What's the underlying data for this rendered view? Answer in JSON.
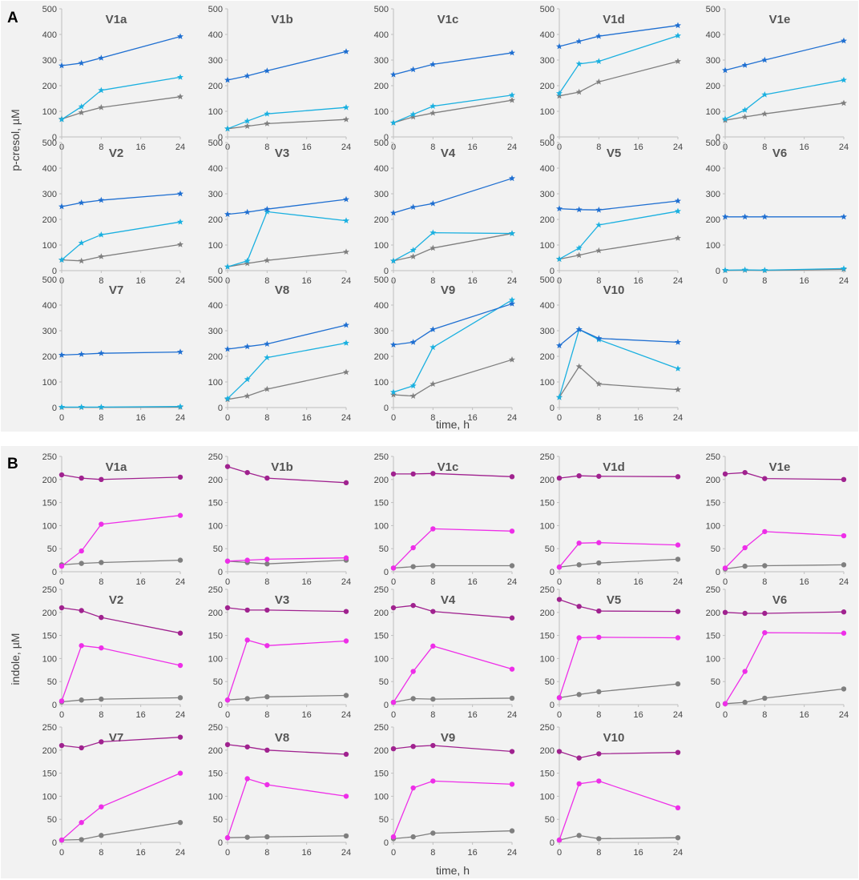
{
  "figure": {
    "colors": {
      "background": "#f2f2f2",
      "pcresol_high": "#1f6fd1",
      "pcresol_mid": "#1ab0e0",
      "pcresol_low": "#7f7f7f",
      "indole_high": "#a0228f",
      "indole_mid": "#ee2ee8",
      "indole_low": "#7f7f7f"
    },
    "marker_icons": {
      "pcresol": "star-icon",
      "indole": "circle-icon"
    }
  },
  "chart_data": [
    {
      "id": "A",
      "type": "line",
      "panel_label": "A",
      "ylabel": "p-cresol, µM",
      "xlabel": "time, h",
      "ylim": [
        0,
        500
      ],
      "yticks": [
        0,
        100,
        200,
        300,
        400,
        500
      ],
      "xlim": [
        0,
        24
      ],
      "xticks": [
        0,
        8,
        16,
        24
      ],
      "x": [
        0,
        4,
        8,
        24
      ],
      "grid": false,
      "marker": "star",
      "subplots": [
        {
          "title": "V1a",
          "series": [
            {
              "color": "#1f6fd1",
              "values": [
                278,
                288,
                308,
                392
              ]
            },
            {
              "color": "#1ab0e0",
              "values": [
                68,
                118,
                182,
                233
              ]
            },
            {
              "color": "#7f7f7f",
              "values": [
                70,
                95,
                115,
                157
              ]
            }
          ]
        },
        {
          "title": "V1b",
          "series": [
            {
              "color": "#1f6fd1",
              "values": [
                222,
                238,
                258,
                333
              ]
            },
            {
              "color": "#1ab0e0",
              "values": [
                32,
                62,
                90,
                115
              ]
            },
            {
              "color": "#7f7f7f",
              "values": [
                32,
                42,
                52,
                68
              ]
            }
          ]
        },
        {
          "title": "V1c",
          "series": [
            {
              "color": "#1f6fd1",
              "values": [
                243,
                263,
                283,
                328
              ]
            },
            {
              "color": "#1ab0e0",
              "values": [
                55,
                88,
                120,
                163
              ]
            },
            {
              "color": "#7f7f7f",
              "values": [
                55,
                78,
                93,
                143
              ]
            }
          ]
        },
        {
          "title": "V1d",
          "series": [
            {
              "color": "#1f6fd1",
              "values": [
                353,
                373,
                393,
                435
              ]
            },
            {
              "color": "#1ab0e0",
              "values": [
                170,
                285,
                295,
                395
              ]
            },
            {
              "color": "#7f7f7f",
              "values": [
                160,
                175,
                215,
                295
              ]
            }
          ]
        },
        {
          "title": "V1e",
          "series": [
            {
              "color": "#1f6fd1",
              "values": [
                260,
                280,
                300,
                375
              ]
            },
            {
              "color": "#1ab0e0",
              "values": [
                70,
                105,
                165,
                222
              ]
            },
            {
              "color": "#7f7f7f",
              "values": [
                65,
                78,
                90,
                132
              ]
            }
          ]
        },
        {
          "title": "V2",
          "series": [
            {
              "color": "#1f6fd1",
              "values": [
                250,
                265,
                275,
                300
              ]
            },
            {
              "color": "#1ab0e0",
              "values": [
                42,
                108,
                140,
                190
              ]
            },
            {
              "color": "#7f7f7f",
              "values": [
                42,
                38,
                55,
                102
              ]
            }
          ]
        },
        {
          "title": "V3",
          "series": [
            {
              "color": "#1f6fd1",
              "values": [
                220,
                228,
                240,
                278
              ]
            },
            {
              "color": "#1ab0e0",
              "values": [
                15,
                38,
                230,
                195
              ]
            },
            {
              "color": "#7f7f7f",
              "values": [
                15,
                28,
                40,
                73
              ]
            }
          ]
        },
        {
          "title": "V4",
          "series": [
            {
              "color": "#1f6fd1",
              "values": [
                225,
                248,
                262,
                360
              ]
            },
            {
              "color": "#1ab0e0",
              "values": [
                38,
                80,
                148,
                145
              ]
            },
            {
              "color": "#7f7f7f",
              "values": [
                38,
                55,
                88,
                145
              ]
            }
          ]
        },
        {
          "title": "V5",
          "series": [
            {
              "color": "#1f6fd1",
              "values": [
                242,
                238,
                237,
                272
              ]
            },
            {
              "color": "#1ab0e0",
              "values": [
                45,
                88,
                178,
                232
              ]
            },
            {
              "color": "#7f7f7f",
              "values": [
                45,
                60,
                78,
                127
              ]
            }
          ]
        },
        {
          "title": "V6",
          "series": [
            {
              "color": "#1f6fd1",
              "values": [
                210,
                210,
                210,
                210
              ]
            },
            {
              "color": "#1ab0e0",
              "values": [
                2,
                3,
                2,
                8
              ]
            },
            {
              "color": "#7f7f7f",
              "values": [
                1,
                2,
                1,
                5
              ]
            }
          ]
        },
        {
          "title": "V7",
          "series": [
            {
              "color": "#1f6fd1",
              "values": [
                205,
                208,
                212,
                217
              ]
            },
            {
              "color": "#1ab0e0",
              "values": [
                2,
                2,
                2,
                4
              ]
            },
            {
              "color": "#7f7f7f",
              "values": [
                1,
                1,
                1,
                2
              ]
            }
          ]
        },
        {
          "title": "V8",
          "series": [
            {
              "color": "#1f6fd1",
              "values": [
                228,
                238,
                248,
                322
              ]
            },
            {
              "color": "#1ab0e0",
              "values": [
                35,
                110,
                195,
                252
              ]
            },
            {
              "color": "#7f7f7f",
              "values": [
                32,
                45,
                72,
                138
              ]
            }
          ]
        },
        {
          "title": "V9",
          "series": [
            {
              "color": "#1f6fd1",
              "values": [
                245,
                255,
                305,
                405
              ]
            },
            {
              "color": "#1ab0e0",
              "values": [
                60,
                85,
                235,
                420
              ]
            },
            {
              "color": "#7f7f7f",
              "values": [
                50,
                45,
                92,
                187
              ]
            }
          ]
        },
        {
          "title": "V10",
          "series": [
            {
              "color": "#1f6fd1",
              "values": [
                242,
                305,
                270,
                255
              ]
            },
            {
              "color": "#1ab0e0",
              "values": [
                40,
                305,
                265,
                152
              ]
            },
            {
              "color": "#7f7f7f",
              "values": [
                40,
                160,
                92,
                70
              ]
            }
          ]
        }
      ]
    },
    {
      "id": "B",
      "type": "line",
      "panel_label": "B",
      "ylabel": "indole, µM",
      "xlabel": "time, h",
      "ylim": [
        0,
        250
      ],
      "yticks": [
        0,
        50,
        100,
        150,
        200,
        250
      ],
      "xlim": [
        0,
        24
      ],
      "xticks": [
        0,
        8,
        16,
        24
      ],
      "x": [
        0,
        4,
        8,
        24
      ],
      "grid": false,
      "marker": "circle",
      "subplots": [
        {
          "title": "V1a",
          "series": [
            {
              "color": "#a0228f",
              "values": [
                210,
                203,
                200,
                205
              ]
            },
            {
              "color": "#ee2ee8",
              "values": [
                12,
                45,
                103,
                122
              ]
            },
            {
              "color": "#7f7f7f",
              "values": [
                15,
                18,
                20,
                25
              ]
            }
          ]
        },
        {
          "title": "V1b",
          "series": [
            {
              "color": "#a0228f",
              "values": [
                228,
                215,
                203,
                193
              ]
            },
            {
              "color": "#ee2ee8",
              "values": [
                23,
                25,
                27,
                30
              ]
            },
            {
              "color": "#7f7f7f",
              "values": [
                23,
                20,
                17,
                25
              ]
            }
          ]
        },
        {
          "title": "V1c",
          "series": [
            {
              "color": "#a0228f",
              "values": [
                212,
                212,
                213,
                206
              ]
            },
            {
              "color": "#ee2ee8",
              "values": [
                8,
                52,
                93,
                88
              ]
            },
            {
              "color": "#7f7f7f",
              "values": [
                8,
                11,
                13,
                13
              ]
            }
          ]
        },
        {
          "title": "V1d",
          "series": [
            {
              "color": "#a0228f",
              "values": [
                203,
                208,
                207,
                206
              ]
            },
            {
              "color": "#ee2ee8",
              "values": [
                10,
                62,
                63,
                58
              ]
            },
            {
              "color": "#7f7f7f",
              "values": [
                10,
                15,
                19,
                27
              ]
            }
          ]
        },
        {
          "title": "V1e",
          "series": [
            {
              "color": "#a0228f",
              "values": [
                212,
                215,
                202,
                200
              ]
            },
            {
              "color": "#ee2ee8",
              "values": [
                8,
                52,
                87,
                78
              ]
            },
            {
              "color": "#7f7f7f",
              "values": [
                6,
                12,
                13,
                15
              ]
            }
          ]
        },
        {
          "title": "V2",
          "series": [
            {
              "color": "#a0228f",
              "values": [
                210,
                204,
                189,
                155
              ]
            },
            {
              "color": "#ee2ee8",
              "values": [
                8,
                128,
                123,
                85
              ]
            },
            {
              "color": "#7f7f7f",
              "values": [
                6,
                10,
                12,
                15
              ]
            }
          ]
        },
        {
          "title": "V3",
          "series": [
            {
              "color": "#a0228f",
              "values": [
                210,
                205,
                205,
                202
              ]
            },
            {
              "color": "#ee2ee8",
              "values": [
                10,
                140,
                128,
                138
              ]
            },
            {
              "color": "#7f7f7f",
              "values": [
                10,
                13,
                17,
                20
              ]
            }
          ]
        },
        {
          "title": "V4",
          "series": [
            {
              "color": "#a0228f",
              "values": [
                210,
                215,
                202,
                188
              ]
            },
            {
              "color": "#ee2ee8",
              "values": [
                5,
                72,
                127,
                77
              ]
            },
            {
              "color": "#7f7f7f",
              "values": [
                5,
                13,
                12,
                14
              ]
            }
          ]
        },
        {
          "title": "V5",
          "series": [
            {
              "color": "#a0228f",
              "values": [
                228,
                213,
                203,
                202
              ]
            },
            {
              "color": "#ee2ee8",
              "values": [
                15,
                145,
                146,
                145
              ]
            },
            {
              "color": "#7f7f7f",
              "values": [
                15,
                22,
                28,
                45
              ]
            }
          ]
        },
        {
          "title": "V6",
          "series": [
            {
              "color": "#a0228f",
              "values": [
                200,
                198,
                198,
                201
              ]
            },
            {
              "color": "#ee2ee8",
              "values": [
                2,
                72,
                156,
                155
              ]
            },
            {
              "color": "#7f7f7f",
              "values": [
                2,
                5,
                14,
                34
              ]
            }
          ]
        },
        {
          "title": "V7",
          "series": [
            {
              "color": "#a0228f",
              "values": [
                210,
                205,
                218,
                228
              ]
            },
            {
              "color": "#ee2ee8",
              "values": [
                5,
                43,
                77,
                150
              ]
            },
            {
              "color": "#7f7f7f",
              "values": [
                5,
                6,
                15,
                43
              ]
            }
          ]
        },
        {
          "title": "V8",
          "series": [
            {
              "color": "#a0228f",
              "values": [
                212,
                207,
                200,
                191
              ]
            },
            {
              "color": "#ee2ee8",
              "values": [
                10,
                138,
                125,
                100
              ]
            },
            {
              "color": "#7f7f7f",
              "values": [
                10,
                11,
                12,
                14
              ]
            }
          ]
        },
        {
          "title": "V9",
          "series": [
            {
              "color": "#a0228f",
              "values": [
                203,
                208,
                210,
                197
              ]
            },
            {
              "color": "#ee2ee8",
              "values": [
                12,
                118,
                133,
                126
              ]
            },
            {
              "color": "#7f7f7f",
              "values": [
                8,
                12,
                20,
                25
              ]
            }
          ]
        },
        {
          "title": "V10",
          "series": [
            {
              "color": "#a0228f",
              "values": [
                197,
                183,
                192,
                195
              ]
            },
            {
              "color": "#ee2ee8",
              "values": [
                5,
                127,
                133,
                75
              ]
            },
            {
              "color": "#7f7f7f",
              "values": [
                5,
                15,
                8,
                10
              ]
            }
          ]
        }
      ]
    }
  ]
}
